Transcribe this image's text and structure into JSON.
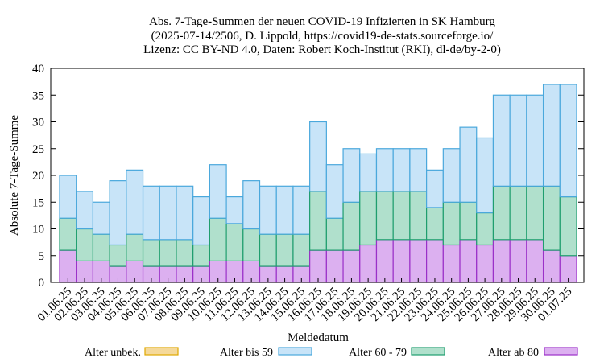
{
  "chart_data": {
    "type": "bar",
    "stacked": true,
    "title": [
      "Abs. 7-Tage-Summen der neuen COVID-19 Infizierten in SK Hamburg",
      "(2025-07-14/2506, D. Lippold, https://covid19-de-stats.sourceforge.io/",
      "Lizenz: CC BY-ND 4.0, Daten: Robert Koch-Institut (RKI), dl-de/by-2-0)"
    ],
    "xlabel": "Meldedatum",
    "ylabel": "Absolute 7-Tage-Summe",
    "ylim": [
      0,
      40
    ],
    "yticks": [
      0,
      5,
      10,
      15,
      20,
      25,
      30,
      35,
      40
    ],
    "grid": false,
    "legend_position": "bottom",
    "categories": [
      "01.06.25",
      "02.06.25",
      "03.06.25",
      "04.06.25",
      "05.06.25",
      "06.06.25",
      "07.06.25",
      "08.06.25",
      "09.06.25",
      "10.06.25",
      "11.06.25",
      "12.06.25",
      "13.06.25",
      "14.06.25",
      "15.06.25",
      "16.06.25",
      "17.06.25",
      "18.06.25",
      "19.06.25",
      "20.06.25",
      "21.06.25",
      "22.06.25",
      "23.06.25",
      "24.06.25",
      "25.06.25",
      "26.06.25",
      "27.06.25",
      "28.06.25",
      "29.06.25",
      "30.06.25",
      "01.07.25"
    ],
    "series": [
      {
        "name": "Alter unbek.",
        "color": "#f5d99a",
        "stroke": "#e0a800",
        "values": [
          0,
          0,
          0,
          0,
          0,
          0,
          0,
          0,
          0,
          0,
          0,
          0,
          0,
          0,
          0,
          0,
          0,
          0,
          0,
          0,
          0,
          0,
          0,
          0,
          0,
          0,
          0,
          0,
          0,
          0,
          0
        ]
      },
      {
        "name": "Alter ab 80",
        "color": "#dcb0f0",
        "stroke": "#9b30c8",
        "values": [
          6,
          4,
          4,
          3,
          4,
          3,
          3,
          3,
          3,
          4,
          4,
          4,
          3,
          3,
          3,
          6,
          6,
          6,
          7,
          8,
          8,
          8,
          8,
          7,
          8,
          7,
          8,
          8,
          8,
          6,
          5
        ]
      },
      {
        "name": "Alter 60 - 79",
        "color": "#b0e0cc",
        "stroke": "#1f9e6e",
        "values": [
          6,
          6,
          5,
          4,
          5,
          5,
          5,
          5,
          4,
          8,
          7,
          6,
          6,
          6,
          6,
          11,
          6,
          9,
          10,
          9,
          9,
          9,
          6,
          8,
          7,
          6,
          10,
          10,
          10,
          12,
          11
        ]
      },
      {
        "name": "Alter bis 59",
        "color": "#c8e4f8",
        "stroke": "#4aa8dc",
        "values": [
          8,
          7,
          6,
          12,
          12,
          10,
          10,
          10,
          9,
          10,
          5,
          9,
          9,
          9,
          9,
          13,
          10,
          10,
          7,
          8,
          8,
          8,
          7,
          10,
          14,
          14,
          17,
          17,
          17,
          19,
          21
        ]
      }
    ],
    "legend_order": [
      "Alter unbek.",
      "Alter bis 59",
      "Alter 60 - 79",
      "Alter ab 80"
    ]
  }
}
